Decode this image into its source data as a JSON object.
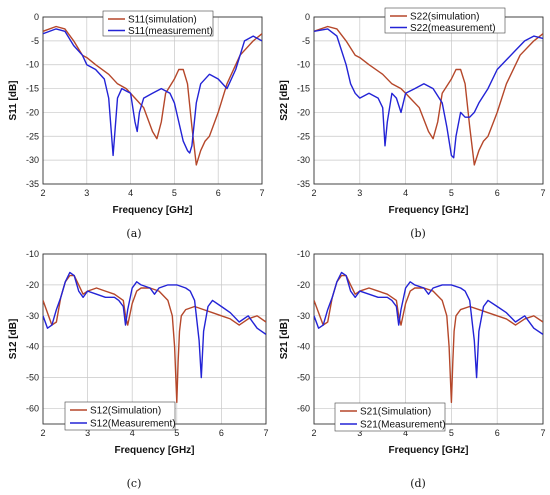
{
  "colors": {
    "simulation": "#b5472a",
    "measurement": "#2323d6"
  },
  "chart_data": [
    {
      "id": "a",
      "type": "line",
      "caption": "(a)",
      "xlabel": "Frequency  [GHz]",
      "ylabel": "S11  [dB]",
      "xlim": [
        2,
        7
      ],
      "ylim": [
        -35,
        0
      ],
      "xticks": [
        2,
        3,
        4,
        5,
        6,
        7
      ],
      "yticks": [
        0,
        -5,
        -10,
        -15,
        -20,
        -25,
        -30,
        -35
      ],
      "legend": "top-center",
      "series": [
        {
          "name": "S11(simulation)",
          "color": "simulation",
          "x": [
            2,
            2.3,
            2.5,
            2.7,
            2.9,
            3.0,
            3.2,
            3.5,
            3.7,
            3.9,
            4.0,
            4.1,
            4.3,
            4.5,
            4.6,
            4.7,
            4.8,
            5.0,
            5.1,
            5.2,
            5.3,
            5.4,
            5.5,
            5.6,
            5.7,
            5.8,
            6.0,
            6.2,
            6.5,
            6.8,
            7.0
          ],
          "y": [
            -3,
            -2,
            -2.5,
            -5,
            -8,
            -8.5,
            -10,
            -12,
            -14,
            -15,
            -16,
            -17,
            -19,
            -24,
            -25.5,
            -22,
            -16,
            -13,
            -11,
            -11,
            -14,
            -23,
            -31,
            -28,
            -26,
            -25,
            -20,
            -14,
            -8,
            -5,
            -3.5
          ]
        },
        {
          "name": "S11(measurement)",
          "color": "measurement",
          "x": [
            2,
            2.3,
            2.5,
            2.7,
            2.9,
            3.0,
            3.2,
            3.4,
            3.5,
            3.6,
            3.7,
            3.8,
            4.0,
            4.1,
            4.15,
            4.2,
            4.3,
            4.5,
            4.7,
            4.9,
            5.0,
            5.1,
            5.2,
            5.3,
            5.35,
            5.4,
            5.5,
            5.6,
            5.8,
            6.0,
            6.2,
            6.4,
            6.6,
            6.8,
            7.0
          ],
          "y": [
            -3.5,
            -2.5,
            -3,
            -6,
            -8,
            -10,
            -11,
            -13,
            -17,
            -29,
            -17,
            -15,
            -16,
            -22,
            -24,
            -20,
            -17,
            -16,
            -15,
            -16,
            -18,
            -22,
            -26,
            -28,
            -28.5,
            -27,
            -18,
            -14,
            -12,
            -13,
            -15,
            -11,
            -5,
            -4,
            -5
          ]
        }
      ]
    },
    {
      "id": "b",
      "type": "line",
      "caption": "(b)",
      "xlabel": "Frequency  [GHz]",
      "ylabel": "S22  [dB]",
      "xlim": [
        2,
        7
      ],
      "ylim": [
        -35,
        0
      ],
      "xticks": [
        2,
        3,
        4,
        5,
        6,
        7
      ],
      "yticks": [
        0,
        -5,
        -10,
        -15,
        -20,
        -25,
        -30,
        -35
      ],
      "legend": "top-center",
      "series": [
        {
          "name": "S22(simulation)",
          "color": "simulation",
          "x": [
            2,
            2.3,
            2.5,
            2.7,
            2.9,
            3.0,
            3.2,
            3.5,
            3.7,
            3.9,
            4.0,
            4.1,
            4.3,
            4.5,
            4.6,
            4.7,
            4.8,
            5.0,
            5.1,
            5.2,
            5.3,
            5.4,
            5.5,
            5.6,
            5.7,
            5.8,
            6.0,
            6.2,
            6.5,
            6.8,
            7.0
          ],
          "y": [
            -3,
            -2,
            -2.5,
            -5,
            -8,
            -8.5,
            -10,
            -12,
            -14,
            -15,
            -16,
            -17,
            -19,
            -24,
            -25.5,
            -22,
            -16,
            -13,
            -11,
            -11,
            -14,
            -23,
            -31,
            -28,
            -26,
            -25,
            -20,
            -14,
            -8,
            -5,
            -3.5
          ]
        },
        {
          "name": "S22(measurement)",
          "color": "measurement",
          "x": [
            2,
            2.3,
            2.5,
            2.7,
            2.8,
            2.9,
            3.0,
            3.2,
            3.4,
            3.5,
            3.55,
            3.6,
            3.7,
            3.8,
            3.9,
            4.0,
            4.2,
            4.4,
            4.6,
            4.8,
            4.9,
            5.0,
            5.05,
            5.1,
            5.2,
            5.3,
            5.4,
            5.5,
            5.6,
            5.8,
            6.0,
            6.2,
            6.4,
            6.6,
            6.8,
            7.0
          ],
          "y": [
            -3,
            -2.5,
            -4,
            -10,
            -14,
            -16,
            -17,
            -16,
            -17,
            -19,
            -27,
            -22,
            -16,
            -17,
            -20,
            -16,
            -15,
            -14,
            -15,
            -18,
            -23,
            -29,
            -29.5,
            -25,
            -20,
            -21,
            -21,
            -20,
            -18,
            -15,
            -11,
            -9,
            -7,
            -5,
            -4,
            -4.5
          ]
        }
      ]
    },
    {
      "id": "c",
      "type": "line",
      "caption": "(c)",
      "xlabel": "Frequency  [GHz]",
      "ylabel": "S12  [dB]",
      "xlim": [
        2,
        7
      ],
      "ylim": [
        -65,
        -10
      ],
      "xticks": [
        2,
        3,
        4,
        5,
        6,
        7
      ],
      "yticks": [
        -10,
        -20,
        -30,
        -40,
        -50,
        -60
      ],
      "legend": "bottom-left",
      "series": [
        {
          "name": "S12(Simulation)",
          "color": "simulation",
          "x": [
            2,
            2.2,
            2.3,
            2.4,
            2.5,
            2.6,
            2.7,
            2.8,
            2.9,
            3.0,
            3.2,
            3.4,
            3.6,
            3.8,
            3.85,
            3.9,
            4.0,
            4.1,
            4.2,
            4.4,
            4.6,
            4.8,
            4.9,
            4.95,
            5.0,
            5.03,
            5.06,
            5.1,
            5.2,
            5.4,
            5.6,
            5.8,
            6.0,
            6.2,
            6.4,
            6.6,
            6.8,
            7.0
          ],
          "y": [
            -25,
            -33,
            -32,
            -24,
            -19,
            -17,
            -17,
            -20,
            -23,
            -22,
            -21,
            -22,
            -23,
            -25,
            -30,
            -33,
            -26,
            -22,
            -21,
            -21,
            -22,
            -25,
            -30,
            -40,
            -58,
            -45,
            -35,
            -30,
            -28,
            -27,
            -28,
            -29,
            -30,
            -31,
            -33,
            -31,
            -30,
            -32
          ]
        },
        {
          "name": "S12(Measurement)",
          "color": "measurement",
          "x": [
            2,
            2.1,
            2.2,
            2.3,
            2.4,
            2.5,
            2.6,
            2.7,
            2.8,
            2.9,
            3.0,
            3.2,
            3.4,
            3.6,
            3.7,
            3.8,
            3.85,
            3.9,
            4.0,
            4.1,
            4.2,
            4.4,
            4.5,
            4.6,
            4.8,
            5.0,
            5.2,
            5.3,
            5.4,
            5.5,
            5.55,
            5.6,
            5.7,
            5.8,
            6.0,
            6.2,
            6.4,
            6.6,
            6.8,
            7.0
          ],
          "y": [
            -30,
            -34,
            -33,
            -28,
            -24,
            -19,
            -16,
            -17,
            -22,
            -24,
            -22,
            -23,
            -24,
            -24,
            -25,
            -27,
            -33,
            -28,
            -21,
            -19,
            -20,
            -21,
            -23,
            -21,
            -20,
            -20,
            -21,
            -22,
            -25,
            -38,
            -50,
            -35,
            -27,
            -25,
            -27,
            -29,
            -32,
            -30,
            -34,
            -36
          ]
        }
      ]
    },
    {
      "id": "d",
      "type": "line",
      "caption": "(d)",
      "xlabel": "Frequency  [GHz]",
      "ylabel": "S21  [dB]",
      "xlim": [
        2,
        7
      ],
      "ylim": [
        -65,
        -10
      ],
      "xticks": [
        2,
        3,
        4,
        5,
        6,
        7
      ],
      "yticks": [
        -10,
        -20,
        -30,
        -40,
        -50,
        -60
      ],
      "legend": "bottom-left",
      "series": [
        {
          "name": "S21(Simulation)",
          "color": "simulation",
          "x": [
            2,
            2.2,
            2.3,
            2.4,
            2.5,
            2.6,
            2.7,
            2.8,
            2.9,
            3.0,
            3.2,
            3.4,
            3.6,
            3.8,
            3.85,
            3.9,
            4.0,
            4.1,
            4.2,
            4.4,
            4.6,
            4.8,
            4.9,
            4.95,
            5.0,
            5.03,
            5.06,
            5.1,
            5.2,
            5.4,
            5.6,
            5.8,
            6.0,
            6.2,
            6.4,
            6.6,
            6.8,
            7.0
          ],
          "y": [
            -25,
            -33,
            -32,
            -24,
            -19,
            -17,
            -17,
            -20,
            -23,
            -22,
            -21,
            -22,
            -23,
            -25,
            -30,
            -33,
            -26,
            -22,
            -21,
            -21,
            -22,
            -25,
            -30,
            -40,
            -58,
            -45,
            -35,
            -30,
            -28,
            -27,
            -28,
            -29,
            -30,
            -31,
            -33,
            -31,
            -30,
            -32
          ]
        },
        {
          "name": "S21(Measurement)",
          "color": "measurement",
          "x": [
            2,
            2.1,
            2.2,
            2.3,
            2.4,
            2.5,
            2.6,
            2.7,
            2.8,
            2.9,
            3.0,
            3.2,
            3.4,
            3.6,
            3.7,
            3.8,
            3.85,
            3.9,
            4.0,
            4.1,
            4.2,
            4.4,
            4.5,
            4.6,
            4.8,
            5.0,
            5.2,
            5.3,
            5.4,
            5.5,
            5.55,
            5.6,
            5.7,
            5.8,
            6.0,
            6.2,
            6.4,
            6.6,
            6.8,
            7.0
          ],
          "y": [
            -30,
            -34,
            -33,
            -28,
            -24,
            -19,
            -16,
            -17,
            -22,
            -24,
            -22,
            -23,
            -24,
            -24,
            -25,
            -27,
            -33,
            -28,
            -21,
            -19,
            -20,
            -21,
            -23,
            -21,
            -20,
            -20,
            -21,
            -22,
            -25,
            -38,
            -50,
            -35,
            -27,
            -25,
            -27,
            -29,
            -32,
            -30,
            -34,
            -36
          ]
        }
      ]
    }
  ]
}
